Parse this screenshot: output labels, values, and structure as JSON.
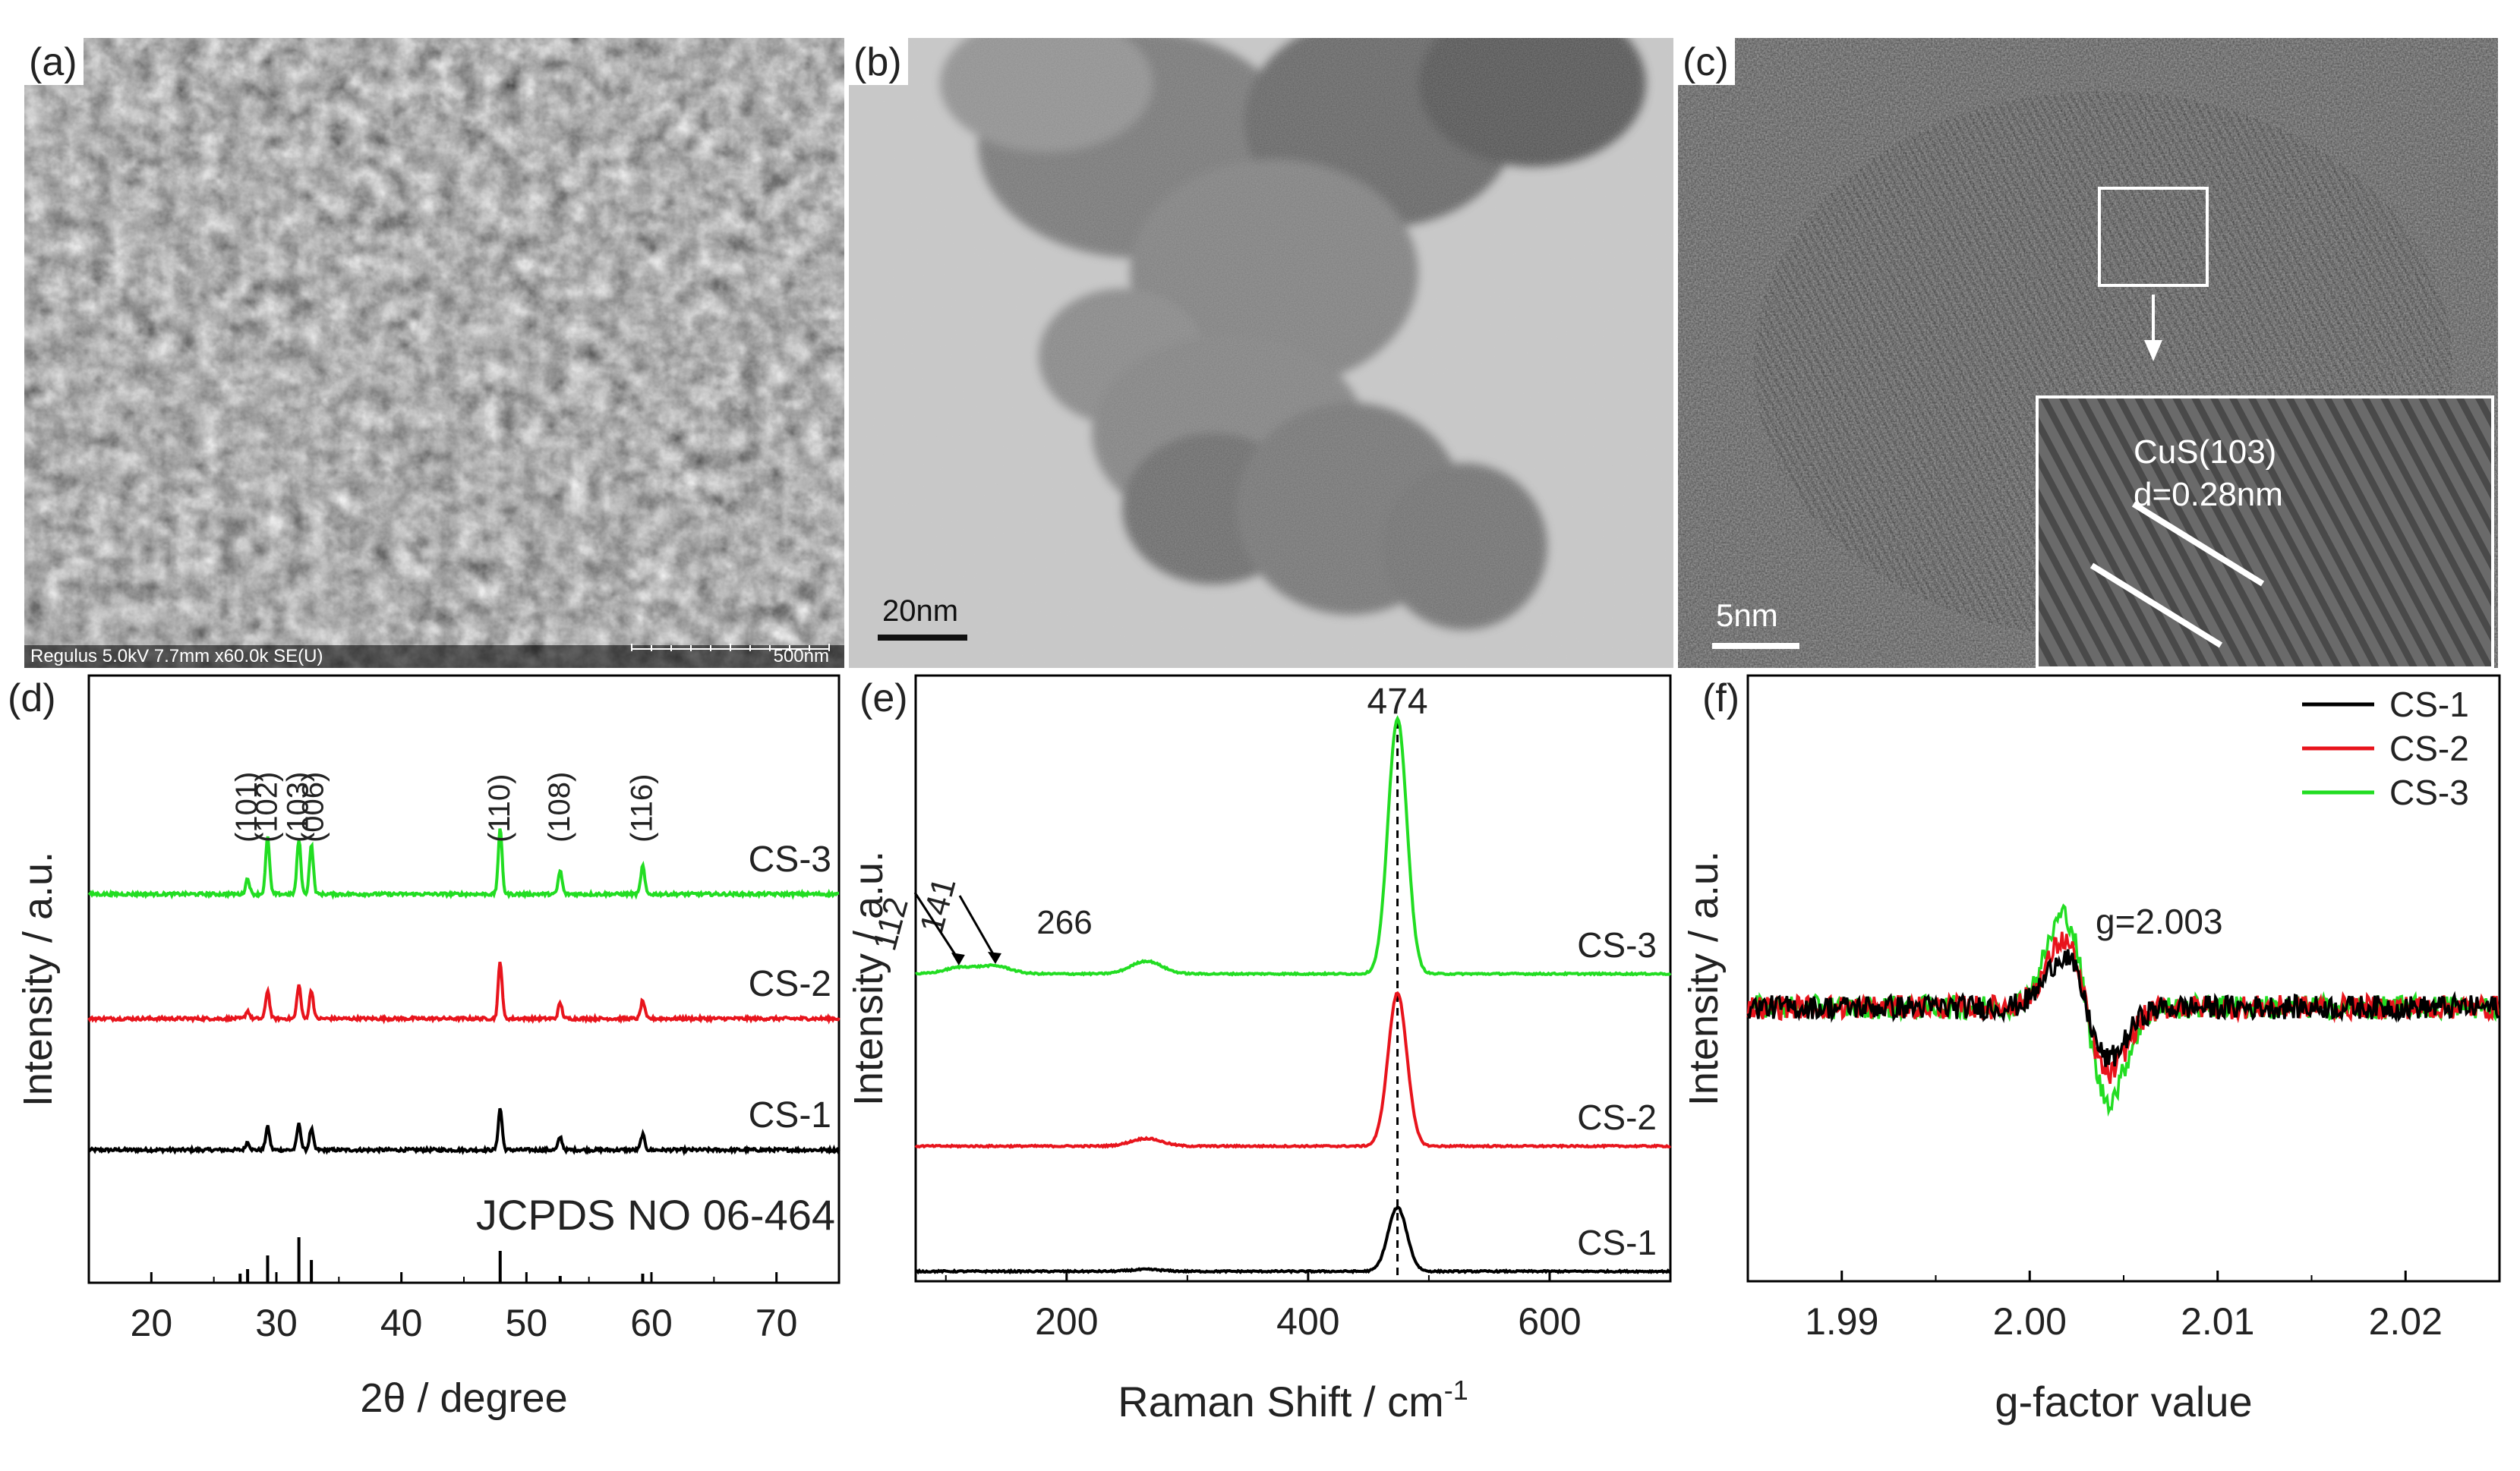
{
  "panels": {
    "a": {
      "label": "(a)",
      "info_text": "Regulus 5.0kV 7.7mm x60.0k SE(U)",
      "scale_text": "500nm"
    },
    "b": {
      "label": "(b)",
      "scale_text": "20nm"
    },
    "c": {
      "label": "(c)",
      "scale_text": "5nm",
      "inset_line1": "CuS(103)",
      "inset_line2": "d=0.28nm"
    },
    "d": {
      "label": "(d)"
    },
    "e": {
      "label": "(e)"
    },
    "f": {
      "label": "(f)"
    }
  },
  "colors": {
    "CS-1": "#000000",
    "CS-2": "#e8141c",
    "CS-3": "#22dd22"
  },
  "chart_data": [
    {
      "panel": "d",
      "type": "line",
      "xlabel": "2θ / degree",
      "ylabel": "Intensity / a.u.",
      "xlim": [
        15,
        75
      ],
      "xticks": [
        20,
        30,
        40,
        50,
        60,
        70
      ],
      "series": [
        {
          "name": "CS-1",
          "peaks": [
            [
              27.7,
              0.3
            ],
            [
              29.3,
              0.9
            ],
            [
              31.8,
              1.0
            ],
            [
              32.8,
              0.8
            ],
            [
              47.9,
              1.6
            ],
            [
              52.7,
              0.5
            ],
            [
              59.3,
              0.6
            ]
          ]
        },
        {
          "name": "CS-2",
          "peaks": [
            [
              27.7,
              0.3
            ],
            [
              29.3,
              1.1
            ],
            [
              31.8,
              1.3
            ],
            [
              32.8,
              1.1
            ],
            [
              47.9,
              2.2
            ],
            [
              52.7,
              0.6
            ],
            [
              59.3,
              0.7
            ]
          ]
        },
        {
          "name": "CS-3",
          "peaks": [
            [
              27.7,
              0.6
            ],
            [
              29.3,
              2.2
            ],
            [
              31.8,
              2.1
            ],
            [
              32.8,
              1.9
            ],
            [
              47.9,
              2.5
            ],
            [
              52.7,
              0.9
            ],
            [
              59.3,
              1.1
            ]
          ]
        }
      ],
      "peak_labels": [
        {
          "text": "(101)",
          "x": 27.7
        },
        {
          "text": "(102)",
          "x": 29.3
        },
        {
          "text": "(103)",
          "x": 31.8
        },
        {
          "text": "(006)",
          "x": 33.0
        },
        {
          "text": "(110)",
          "x": 47.9
        },
        {
          "text": "(108)",
          "x": 52.7
        },
        {
          "text": "(116)",
          "x": 59.3
        }
      ],
      "reference": {
        "label": "JCPDS NO 06-464",
        "sticks": [
          [
            27.1,
            0.2
          ],
          [
            27.7,
            0.3
          ],
          [
            29.3,
            0.6
          ],
          [
            31.8,
            1.0
          ],
          [
            32.8,
            0.5
          ],
          [
            47.9,
            0.7
          ],
          [
            52.7,
            0.15
          ],
          [
            59.3,
            0.2
          ]
        ]
      }
    },
    {
      "panel": "e",
      "type": "line",
      "xlabel": "Raman Shift / cm",
      "xlabel_sup": "-1",
      "ylabel": "Intensity / a.u.",
      "xlim": [
        75,
        700
      ],
      "xticks": [
        200,
        400,
        600
      ],
      "marker_line": 474,
      "marker_label": "474",
      "series": [
        {
          "name": "CS-1",
          "peaks": [
            [
              474,
              1.0
            ],
            [
              266,
              0.03
            ]
          ]
        },
        {
          "name": "CS-2",
          "peaks": [
            [
              474,
              2.4
            ],
            [
              266,
              0.12
            ]
          ]
        },
        {
          "name": "CS-3",
          "peaks": [
            [
              474,
              4.0
            ],
            [
              266,
              0.2
            ],
            [
              112,
              0.1
            ],
            [
              141,
              0.12
            ]
          ]
        }
      ],
      "annotations": [
        "112",
        "141",
        "266"
      ]
    },
    {
      "panel": "f",
      "type": "line",
      "xlabel": "g-factor value",
      "ylabel": "Intensity / a.u.",
      "xlim": [
        1.985,
        2.025
      ],
      "xticks": [
        1.99,
        2.0,
        2.01,
        2.02
      ],
      "xtick_labels": [
        "1.99",
        "2.00",
        "2.01",
        "2.02"
      ],
      "annotation": "g=2.003",
      "legend": {
        "position": "top-right",
        "entries": [
          "CS-1",
          "CS-2",
          "CS-3"
        ]
      },
      "series": [
        {
          "name": "CS-1",
          "amplitude": 1.0
        },
        {
          "name": "CS-2",
          "amplitude": 1.3
        },
        {
          "name": "CS-3",
          "amplitude": 1.8
        }
      ]
    }
  ]
}
